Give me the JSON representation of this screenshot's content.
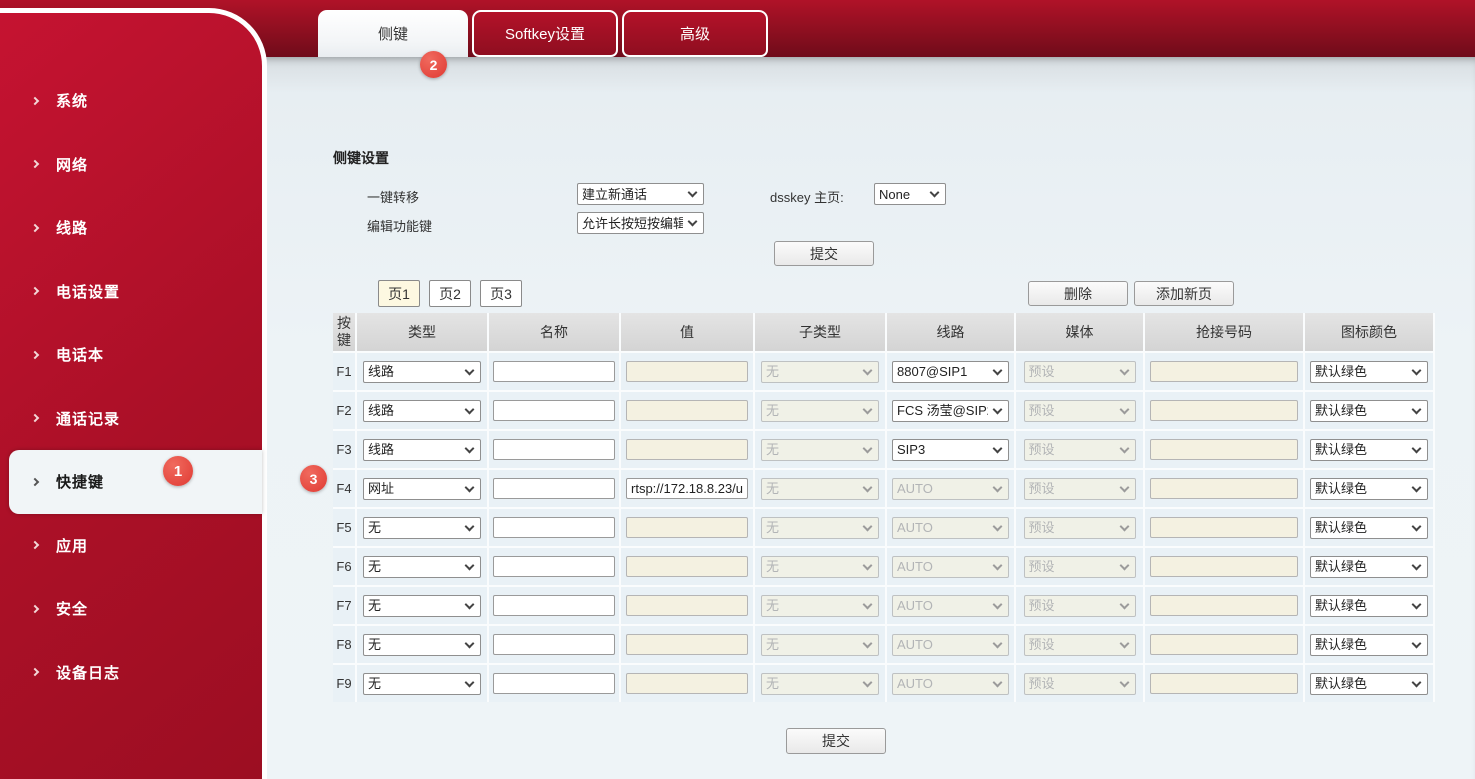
{
  "sidebar": {
    "items": [
      {
        "name": "system",
        "label": "系统",
        "active": false
      },
      {
        "name": "network",
        "label": "网络",
        "active": false
      },
      {
        "name": "line",
        "label": "线路",
        "active": false
      },
      {
        "name": "phone-settings",
        "label": "电话设置",
        "active": false
      },
      {
        "name": "phonebook",
        "label": "电话本",
        "active": false
      },
      {
        "name": "call-logs",
        "label": "通话记录",
        "active": false
      },
      {
        "name": "function-key",
        "label": "快捷键",
        "active": true
      },
      {
        "name": "application",
        "label": "应用",
        "active": false
      },
      {
        "name": "security",
        "label": "安全",
        "active": false
      },
      {
        "name": "device-log",
        "label": "设备日志",
        "active": false
      }
    ]
  },
  "tabs": [
    {
      "name": "side-key",
      "label": "侧键",
      "active": true
    },
    {
      "name": "softkey-settings",
      "label": "Softkey设置",
      "active": false
    },
    {
      "name": "advanced",
      "label": "高级",
      "active": false
    }
  ],
  "annotations": [
    {
      "label": "1"
    },
    {
      "label": "2"
    },
    {
      "label": "3"
    }
  ],
  "form": {
    "section_title": "侧键设置",
    "fields": [
      {
        "label": "一键转移",
        "value": "建立新通话"
      },
      {
        "label": "编辑功能键",
        "value": "允许长按短按编辑"
      }
    ],
    "dsskey_label": "dsskey 主页:",
    "dsskey_value": "None",
    "submit_label": "提交"
  },
  "pager": {
    "pages": [
      {
        "label": "页1",
        "active": true
      },
      {
        "label": "页2",
        "active": false
      },
      {
        "label": "页3",
        "active": false
      }
    ],
    "delete_label": "删除",
    "add_label": "添加新页"
  },
  "table": {
    "headers": [
      "按键",
      "类型",
      "名称",
      "值",
      "子类型",
      "线路",
      "媒体",
      "抢接号码",
      "图标颜色"
    ],
    "rows": [
      {
        "key": "F1",
        "type": "线路",
        "name": "",
        "value": "",
        "value_enabled": false,
        "subtype": "无",
        "line": "8807@SIP1",
        "line_enabled": true,
        "media": "预设",
        "pickup": "",
        "color": "默认绿色"
      },
      {
        "key": "F2",
        "type": "线路",
        "name": "",
        "value": "",
        "value_enabled": false,
        "subtype": "无",
        "line": "FCS 汤莹@SIP2",
        "line_enabled": true,
        "media": "预设",
        "pickup": "",
        "color": "默认绿色"
      },
      {
        "key": "F3",
        "type": "线路",
        "name": "",
        "value": "",
        "value_enabled": false,
        "subtype": "无",
        "line": "SIP3",
        "line_enabled": true,
        "media": "预设",
        "pickup": "",
        "color": "默认绿色"
      },
      {
        "key": "F4",
        "type": "网址",
        "name": "",
        "value": "rtsp://172.18.8.23/u",
        "value_enabled": true,
        "subtype": "无",
        "line": "AUTO",
        "line_enabled": false,
        "media": "预设",
        "pickup": "",
        "color": "默认绿色"
      },
      {
        "key": "F5",
        "type": "无",
        "name": "",
        "value": "",
        "value_enabled": false,
        "subtype": "无",
        "line": "AUTO",
        "line_enabled": false,
        "media": "预设",
        "pickup": "",
        "color": "默认绿色"
      },
      {
        "key": "F6",
        "type": "无",
        "name": "",
        "value": "",
        "value_enabled": false,
        "subtype": "无",
        "line": "AUTO",
        "line_enabled": false,
        "media": "预设",
        "pickup": "",
        "color": "默认绿色"
      },
      {
        "key": "F7",
        "type": "无",
        "name": "",
        "value": "",
        "value_enabled": false,
        "subtype": "无",
        "line": "AUTO",
        "line_enabled": false,
        "media": "预设",
        "pickup": "",
        "color": "默认绿色"
      },
      {
        "key": "F8",
        "type": "无",
        "name": "",
        "value": "",
        "value_enabled": false,
        "subtype": "无",
        "line": "AUTO",
        "line_enabled": false,
        "media": "预设",
        "pickup": "",
        "color": "默认绿色"
      },
      {
        "key": "F9",
        "type": "无",
        "name": "",
        "value": "",
        "value_enabled": false,
        "subtype": "无",
        "line": "AUTO",
        "line_enabled": false,
        "media": "预设",
        "pickup": "",
        "color": "默认绿色"
      }
    ]
  },
  "footer": {
    "submit_label": "提交"
  },
  "colors": {
    "brand_red": "#a50f24",
    "band_red_top": "#b01228",
    "badge_red": "#e8433d",
    "disabled_bg": "#f4f1e1",
    "row_bg": "#e9f1f6",
    "active_page_bg": "#fdf8e1"
  }
}
